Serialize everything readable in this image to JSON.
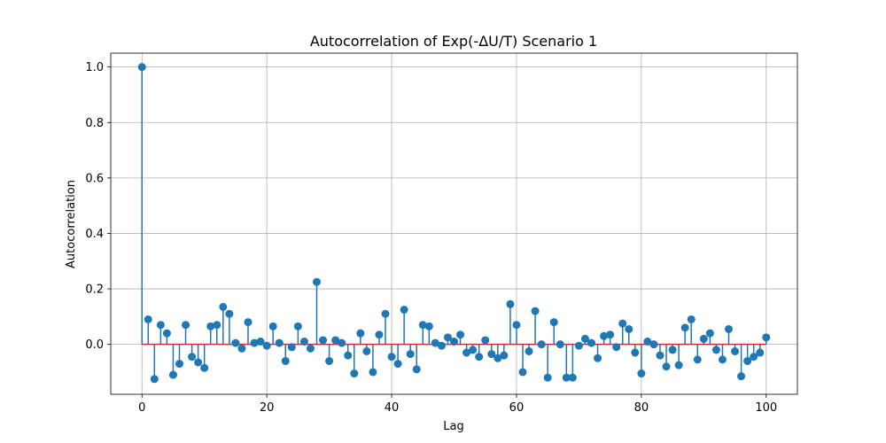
{
  "chart_data": {
    "type": "stem",
    "title": "Autocorrelation of Exp(-ΔU/T) Scenario 1",
    "xlabel": "Lag",
    "ylabel": "Autocorrelation",
    "xlim": [
      -5,
      105
    ],
    "ylim": [
      -0.18,
      1.05
    ],
    "xticks": [
      0,
      20,
      40,
      60,
      80,
      100
    ],
    "xtick_labels": [
      "0",
      "20",
      "40",
      "60",
      "80",
      "100"
    ],
    "yticks": [
      0.0,
      0.2,
      0.4,
      0.6,
      0.8,
      1.0
    ],
    "ytick_labels": [
      "0.0",
      "0.2",
      "0.4",
      "0.6",
      "0.8",
      "1.0"
    ],
    "grid": true,
    "colors": {
      "stem": "#1f77b4",
      "marker": "#1f77b4",
      "baseline": "#d62728"
    },
    "x": [
      0,
      1,
      2,
      3,
      4,
      5,
      6,
      7,
      8,
      9,
      10,
      11,
      12,
      13,
      14,
      15,
      16,
      17,
      18,
      19,
      20,
      21,
      22,
      23,
      24,
      25,
      26,
      27,
      28,
      29,
      30,
      31,
      32,
      33,
      34,
      35,
      36,
      37,
      38,
      39,
      40,
      41,
      42,
      43,
      44,
      45,
      46,
      47,
      48,
      49,
      50,
      51,
      52,
      53,
      54,
      55,
      56,
      57,
      58,
      59,
      60,
      61,
      62,
      63,
      64,
      65,
      66,
      67,
      68,
      69,
      70,
      71,
      72,
      73,
      74,
      75,
      76,
      77,
      78,
      79,
      80,
      81,
      82,
      83,
      84,
      85,
      86,
      87,
      88,
      89,
      90,
      91,
      92,
      93,
      94,
      95,
      96,
      97,
      98,
      99,
      100
    ],
    "values": [
      1.0,
      0.09,
      -0.125,
      0.07,
      0.04,
      -0.11,
      -0.07,
      0.07,
      -0.045,
      -0.065,
      -0.085,
      0.065,
      0.07,
      0.135,
      0.11,
      0.005,
      -0.015,
      0.08,
      0.005,
      0.01,
      -0.005,
      0.065,
      0.005,
      -0.06,
      -0.01,
      0.065,
      0.01,
      -0.015,
      0.225,
      0.015,
      -0.06,
      0.015,
      0.005,
      -0.04,
      -0.105,
      0.04,
      -0.025,
      -0.1,
      0.035,
      0.11,
      -0.045,
      -0.07,
      0.125,
      -0.035,
      -0.09,
      0.07,
      0.065,
      0.005,
      -0.005,
      0.025,
      0.01,
      0.035,
      -0.03,
      -0.02,
      -0.045,
      0.015,
      -0.035,
      -0.05,
      -0.04,
      0.145,
      0.07,
      -0.1,
      -0.025,
      0.12,
      0.0,
      -0.12,
      0.08,
      0.0,
      -0.12,
      -0.12,
      -0.005,
      0.02,
      0.005,
      -0.05,
      0.03,
      0.035,
      -0.01,
      0.075,
      0.055,
      -0.03,
      -0.105,
      0.01,
      0.0,
      -0.04,
      -0.08,
      -0.02,
      -0.075,
      0.06,
      0.09,
      -0.055,
      0.02,
      0.04,
      -0.02,
      -0.055,
      0.055,
      -0.025,
      -0.115,
      -0.06,
      -0.045,
      -0.03,
      0.025
    ]
  }
}
